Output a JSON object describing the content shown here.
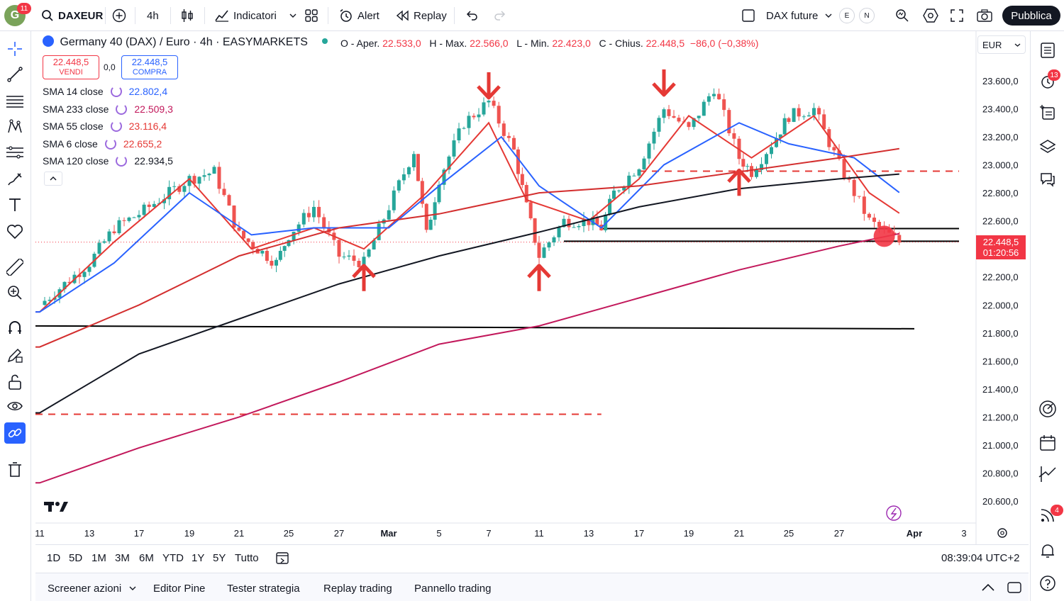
{
  "topbar": {
    "avatar_letter": "G",
    "avatar_badge": "11",
    "symbol": "DAXEUR",
    "timeframe": "4h",
    "indicators_label": "Indicatori",
    "alert_label": "Alert",
    "replay_label": "Replay",
    "layout_name": "DAX future",
    "pill_e": "E",
    "pill_n": "N",
    "publish_label": "Pubblica"
  },
  "legend": {
    "title": "Germany 40 (DAX) / Euro · 4h · EASYMARKETS",
    "ohlc": {
      "o_label": "O - Aper.",
      "o": "22.533,0",
      "h_label": "H - Max.",
      "h": "22.566,0",
      "l_label": "L - Min.",
      "l": "22.423,0",
      "c_label": "C - Chius.",
      "c": "22.448,5",
      "change": "−86,0 (−0,38%)"
    },
    "sell_price": "22.448,5",
    "sell_label": "VENDI",
    "spread": "0,0",
    "buy_price": "22.448,5",
    "buy_label": "COMPRA",
    "collapse_glyph": "^"
  },
  "indicators": [
    {
      "label": "SMA 14 close",
      "value": "22.802,4",
      "color": "#2962ff"
    },
    {
      "label": "SMA 233 close",
      "value": "22.509,3",
      "color": "#c2185b"
    },
    {
      "label": "SMA 55 close",
      "value": "23.116,4",
      "color": "#e53935"
    },
    {
      "label": "SMA 6 close",
      "value": "22.655,2",
      "color": "#e53935"
    },
    {
      "label": "SMA 120 close",
      "value": "22.934,5",
      "color": "#131722"
    }
  ],
  "price_axis": {
    "currency": "EUR",
    "current_price": "22.448,5",
    "countdown": "01:20:56"
  },
  "chart_data": {
    "type": "candlestick",
    "symbol": "Germany 40 (DAX) / Euro",
    "interval": "4h",
    "y_ticks": [
      "23.600,0",
      "23.400,0",
      "23.200,0",
      "23.000,0",
      "22.800,0",
      "22.600,0",
      "22.200,0",
      "22.000,0",
      "21.800,0",
      "21.600,0",
      "21.400,0",
      "21.200,0",
      "21.000,0",
      "20.800,0",
      "20.600,0"
    ],
    "x_ticks": [
      "11",
      "13",
      "17",
      "19",
      "21",
      "25",
      "27",
      "Mar",
      "5",
      "7",
      "11",
      "13",
      "17",
      "19",
      "21",
      "25",
      "27",
      "Apr",
      "3"
    ],
    "ylim": [
      20500,
      23750
    ],
    "grid": false,
    "close_path": [
      {
        "x": "Feb 11",
        "y": 22000
      },
      {
        "x": "Feb 13",
        "y": 22300
      },
      {
        "x": "Feb 15",
        "y": 22550
      },
      {
        "x": "Feb 17",
        "y": 22650
      },
      {
        "x": "Feb 19",
        "y": 22900
      },
      {
        "x": "Feb 20",
        "y": 22950
      },
      {
        "x": "Feb 21",
        "y": 22500
      },
      {
        "x": "Feb 24",
        "y": 22300
      },
      {
        "x": "Feb 25",
        "y": 22500
      },
      {
        "x": "Feb 26",
        "y": 22700
      },
      {
        "x": "Feb 27",
        "y": 22350
      },
      {
        "x": "Feb 28",
        "y": 22300
      },
      {
        "x": "Mar 3",
        "y": 23100
      },
      {
        "x": "Mar 4",
        "y": 22500
      },
      {
        "x": "Mar 5",
        "y": 22900
      },
      {
        "x": "Mar 6",
        "y": 23300
      },
      {
        "x": "Mar 7",
        "y": 23450
      },
      {
        "x": "Mar 9",
        "y": 23100
      },
      {
        "x": "Mar 10",
        "y": 22700
      },
      {
        "x": "Mar 11",
        "y": 22350
      },
      {
        "x": "Mar 12",
        "y": 22600
      },
      {
        "x": "Mar 13",
        "y": 22600
      },
      {
        "x": "Mar 14",
        "y": 22550
      },
      {
        "x": "Mar 15",
        "y": 22800
      },
      {
        "x": "Mar 17",
        "y": 23000
      },
      {
        "x": "Mar 18",
        "y": 23400
      },
      {
        "x": "Mar 19",
        "y": 23250
      },
      {
        "x": "Mar 20",
        "y": 23550
      },
      {
        "x": "Mar 21",
        "y": 23050
      },
      {
        "x": "Mar 22",
        "y": 22950
      },
      {
        "x": "Mar 24",
        "y": 23200
      },
      {
        "x": "Mar 25",
        "y": 23350
      },
      {
        "x": "Mar 26",
        "y": 23400
      },
      {
        "x": "Mar 27",
        "y": 23000
      },
      {
        "x": "Mar 28",
        "y": 22800
      },
      {
        "x": "Mar 29",
        "y": 22600
      },
      {
        "x": "Mar 31",
        "y": 22448.5
      }
    ],
    "series": [
      {
        "name": "SMA 6 close",
        "color": "#e53935",
        "points": [
          {
            "x": "Feb 11",
            "y": 21950
          },
          {
            "x": "Feb 15",
            "y": 22450
          },
          {
            "x": "Feb 19",
            "y": 22900
          },
          {
            "x": "Feb 22",
            "y": 22400
          },
          {
            "x": "Feb 26",
            "y": 22550
          },
          {
            "x": "Feb 28",
            "y": 22400
          },
          {
            "x": "Mar 4",
            "y": 22800
          },
          {
            "x": "Mar 7",
            "y": 23300
          },
          {
            "x": "Mar 10",
            "y": 22750
          },
          {
            "x": "Mar 13",
            "y": 22600
          },
          {
            "x": "Mar 17",
            "y": 22900
          },
          {
            "x": "Mar 19",
            "y": 23350
          },
          {
            "x": "Mar 22",
            "y": 23050
          },
          {
            "x": "Mar 26",
            "y": 23350
          },
          {
            "x": "Mar 29",
            "y": 22800
          },
          {
            "x": "Mar 31",
            "y": 22655
          }
        ]
      },
      {
        "name": "SMA 14 close",
        "color": "#2962ff",
        "points": [
          {
            "x": "Feb 11",
            "y": 21950
          },
          {
            "x": "Feb 15",
            "y": 22300
          },
          {
            "x": "Feb 19",
            "y": 22800
          },
          {
            "x": "Feb 22",
            "y": 22500
          },
          {
            "x": "Feb 26",
            "y": 22550
          },
          {
            "x": "Mar 1",
            "y": 22550
          },
          {
            "x": "Mar 5",
            "y": 22850
          },
          {
            "x": "Mar 8",
            "y": 23200
          },
          {
            "x": "Mar 11",
            "y": 22850
          },
          {
            "x": "Mar 14",
            "y": 22550
          },
          {
            "x": "Mar 18",
            "y": 23000
          },
          {
            "x": "Mar 21",
            "y": 23300
          },
          {
            "x": "Mar 25",
            "y": 23150
          },
          {
            "x": "Mar 28",
            "y": 23050
          },
          {
            "x": "Mar 31",
            "y": 22802
          }
        ]
      },
      {
        "name": "SMA 55 close",
        "color": "#d32f2f",
        "points": [
          {
            "x": "Feb 11",
            "y": 21700
          },
          {
            "x": "Feb 17",
            "y": 22000
          },
          {
            "x": "Feb 21",
            "y": 22350
          },
          {
            "x": "Feb 27",
            "y": 22550
          },
          {
            "x": "Mar 5",
            "y": 22650
          },
          {
            "x": "Mar 11",
            "y": 22800
          },
          {
            "x": "Mar 17",
            "y": 22850
          },
          {
            "x": "Mar 21",
            "y": 22950
          },
          {
            "x": "Mar 27",
            "y": 23050
          },
          {
            "x": "Mar 31",
            "y": 23116
          }
        ]
      },
      {
        "name": "SMA 120 close",
        "color": "#131722",
        "points": [
          {
            "x": "Feb 11",
            "y": 21230
          },
          {
            "x": "Feb 17",
            "y": 21650
          },
          {
            "x": "Feb 21",
            "y": 21900
          },
          {
            "x": "Feb 27",
            "y": 22150
          },
          {
            "x": "Mar 5",
            "y": 22350
          },
          {
            "x": "Mar 11",
            "y": 22520
          },
          {
            "x": "Mar 17",
            "y": 22700
          },
          {
            "x": "Mar 21",
            "y": 22830
          },
          {
            "x": "Mar 27",
            "y": 22900
          },
          {
            "x": "Mar 31",
            "y": 22934
          }
        ]
      },
      {
        "name": "SMA 233 close",
        "color": "#c2185b",
        "points": [
          {
            "x": "Feb 11",
            "y": 20730
          },
          {
            "x": "Feb 17",
            "y": 20980
          },
          {
            "x": "Feb 21",
            "y": 21200
          },
          {
            "x": "Feb 27",
            "y": 21450
          },
          {
            "x": "Mar 5",
            "y": 21720
          },
          {
            "x": "Mar 11",
            "y": 21850
          },
          {
            "x": "Mar 17",
            "y": 22050
          },
          {
            "x": "Mar 21",
            "y": 22250
          },
          {
            "x": "Mar 27",
            "y": 22420
          },
          {
            "x": "Mar 31",
            "y": 22509
          }
        ]
      }
    ],
    "horizontal_lines": [
      {
        "kind": "solid",
        "color": "#000000",
        "y_start": 21850,
        "y_end": 21830,
        "x_start": "Feb 11",
        "x_end": "Apr 1"
      },
      {
        "kind": "solid",
        "color": "#000000",
        "y": 22545,
        "x_start": "Mar 14",
        "x_end": "Apr 4"
      },
      {
        "kind": "solid",
        "color": "#000000",
        "y": 22455,
        "x_start": "Mar 12",
        "x_end": "Apr 3"
      },
      {
        "kind": "dashed",
        "color": "#e53935",
        "y": 22955,
        "x_start": "Mar 17",
        "x_end": "Apr 4"
      },
      {
        "kind": "dashed",
        "color": "#e53935",
        "y": 21220,
        "x_start": "Feb 11",
        "x_end": "Mar 14"
      },
      {
        "kind": "dotted",
        "color": "#f23645",
        "y": 22448.5,
        "x_start": "Feb 11",
        "x_end": "Apr 4"
      }
    ],
    "markers": [
      {
        "kind": "arrow-down",
        "color": "#e53935",
        "x": "Mar 7",
        "y": 23560
      },
      {
        "kind": "arrow-down",
        "color": "#e53935",
        "x": "Mar 18",
        "y": 23580
      },
      {
        "kind": "arrow-up",
        "color": "#e53935",
        "x": "Feb 28",
        "y": 22200
      },
      {
        "kind": "arrow-up",
        "color": "#e53935",
        "x": "Mar 11",
        "y": 22200
      },
      {
        "kind": "arrow-up",
        "color": "#e53935",
        "x": "Mar 21",
        "y": 22880
      },
      {
        "kind": "dot",
        "color": "#f23645",
        "x": "Mar 30",
        "y": 22490
      }
    ]
  },
  "range_bar": {
    "ranges": [
      "1D",
      "5D",
      "1M",
      "3M",
      "6M",
      "YTD",
      "1Y",
      "5Y",
      "Tutto"
    ],
    "clock": "08:39:04 UTC+2"
  },
  "bottom_bar": {
    "tabs": [
      "Screener azioni",
      "Editor Pine",
      "Tester strategia",
      "Replay trading",
      "Pannello trading"
    ]
  },
  "right_toolbar": {
    "alerts_badge": "13",
    "notifications_badge": "4"
  },
  "colors": {
    "up": "#26a69a",
    "down": "#ef5350",
    "accent": "#2962ff",
    "alert_red": "#f23645"
  }
}
